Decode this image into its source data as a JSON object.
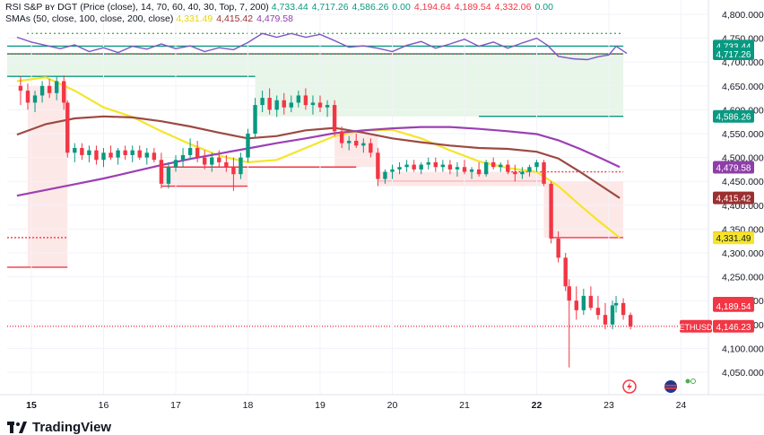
{
  "legend": {
    "indicator_line": {
      "name": "RSI S&P ʙʏ DGT",
      "params": "(Price (close), 14, 70, 60, 40, 30, Top, 7, 200)",
      "values": [
        "4,733.44",
        "4,717.26",
        "4,586.26",
        "0.00",
        "4,194.64",
        "4,189.54",
        "4,332.06",
        "0.00"
      ],
      "value_colors": [
        "#089981",
        "#089981",
        "#089981",
        "#089981",
        "#f23645",
        "#f23645",
        "#f23645",
        "#089981"
      ]
    },
    "smas_line": {
      "name": "SMAs (50, close, 100, close, 200, close)",
      "values": [
        "4,331.49",
        "4,415.42",
        "4,479.58"
      ],
      "value_colors": [
        "#e8d600",
        "#9c2f2f",
        "#8e3ea8"
      ]
    }
  },
  "footer": {
    "brand": "TradingView"
  },
  "colors": {
    "up": "#089981",
    "down": "#f23645",
    "sma50": "#f5e52a",
    "sma100": "#9c4a42",
    "sma200": "#9c3fb4",
    "rsi": "#7e57c2",
    "green_fill": "#e8f5e9",
    "red_fill": "#fde8e8"
  },
  "chart_data": {
    "type": "candlestick",
    "symbol": "ETHUSD",
    "last_price": 4146.23,
    "y_axis": {
      "min": 4050,
      "max": 4800,
      "ticks": [
        4050,
        4100,
        4150,
        4200,
        4250,
        4300,
        4350,
        4400,
        4450,
        4500,
        4550,
        4600,
        4650,
        4700,
        4750,
        4800
      ]
    },
    "x_axis": {
      "ticks": [
        "15",
        "16",
        "17",
        "18",
        "19",
        "20",
        "21",
        "22",
        "23",
        "24"
      ]
    },
    "price_labels": [
      {
        "text": "4,733.44",
        "value": 4733.44,
        "color": "#089981"
      },
      {
        "text": "4,717.26",
        "value": 4717.26,
        "color": "#089981"
      },
      {
        "text": "4,586.26",
        "value": 4586.26,
        "color": "#089981"
      },
      {
        "text": "4,479.58",
        "value": 4479.58,
        "color": "#8e3ea8"
      },
      {
        "text": "4,415.42",
        "value": 4415.42,
        "color": "#9c2f2f"
      },
      {
        "text": "4,332.06",
        "value": 4332.06,
        "color": "#f23645"
      },
      {
        "text": "4,331.49",
        "value": 4331.49,
        "color": "#f5e52a",
        "text_color": "#131722"
      },
      {
        "text": "4,194.64",
        "value": 4194.64,
        "color": "#f23645"
      },
      {
        "text": "4,189.54",
        "value": 4189.54,
        "color": "#f23645"
      },
      {
        "text": "4,146.23",
        "value": 4146.23,
        "color": "#f23645",
        "symbol_label": "ETHUSD"
      }
    ],
    "sma_series": [
      {
        "name": "SMA 50",
        "color": "#f5e52a",
        "points": [
          [
            14.8,
            4660
          ],
          [
            15.2,
            4668
          ],
          [
            15.6,
            4640
          ],
          [
            16,
            4605
          ],
          [
            16.4,
            4585
          ],
          [
            16.8,
            4555
          ],
          [
            17.2,
            4528
          ],
          [
            17.6,
            4504
          ],
          [
            18,
            4490
          ],
          [
            18.4,
            4495
          ],
          [
            18.8,
            4520
          ],
          [
            19.2,
            4545
          ],
          [
            19.6,
            4556
          ],
          [
            20,
            4558
          ],
          [
            20.4,
            4540
          ],
          [
            20.8,
            4515
          ],
          [
            21.2,
            4492
          ],
          [
            21.6,
            4478
          ],
          [
            22,
            4470
          ],
          [
            22.3,
            4440
          ],
          [
            22.6,
            4400
          ],
          [
            22.9,
            4362
          ],
          [
            23.15,
            4332
          ]
        ]
      },
      {
        "name": "SMA 100",
        "color": "#9c4a42",
        "points": [
          [
            14.8,
            4548
          ],
          [
            15.2,
            4570
          ],
          [
            15.6,
            4582
          ],
          [
            16,
            4586
          ],
          [
            16.4,
            4584
          ],
          [
            16.8,
            4576
          ],
          [
            17.2,
            4565
          ],
          [
            17.6,
            4552
          ],
          [
            18,
            4540
          ],
          [
            18.4,
            4545
          ],
          [
            18.8,
            4557
          ],
          [
            19.2,
            4562
          ],
          [
            19.6,
            4552
          ],
          [
            20,
            4540
          ],
          [
            20.4,
            4532
          ],
          [
            20.8,
            4525
          ],
          [
            21.2,
            4520
          ],
          [
            21.6,
            4518
          ],
          [
            22,
            4512
          ],
          [
            22.3,
            4498
          ],
          [
            22.6,
            4470
          ],
          [
            22.9,
            4440
          ],
          [
            23.15,
            4415
          ]
        ]
      },
      {
        "name": "SMA 200",
        "color": "#9c3fb4",
        "points": [
          [
            14.8,
            4420
          ],
          [
            15.2,
            4432
          ],
          [
            15.6,
            4444
          ],
          [
            16,
            4456
          ],
          [
            16.4,
            4470
          ],
          [
            16.8,
            4484
          ],
          [
            17.2,
            4497
          ],
          [
            17.6,
            4508
          ],
          [
            18,
            4519
          ],
          [
            18.4,
            4530
          ],
          [
            18.8,
            4540
          ],
          [
            19.2,
            4551
          ],
          [
            19.6,
            4557
          ],
          [
            20,
            4561
          ],
          [
            20.4,
            4564
          ],
          [
            20.8,
            4564
          ],
          [
            21.2,
            4560
          ],
          [
            21.6,
            4555
          ],
          [
            22,
            4549
          ],
          [
            22.3,
            4536
          ],
          [
            22.6,
            4518
          ],
          [
            22.9,
            4498
          ],
          [
            23.15,
            4480
          ]
        ]
      }
    ],
    "rsi_overlay": {
      "points": [
        [
          14.8,
          4752
        ],
        [
          15.0,
          4742
        ],
        [
          15.2,
          4735
        ],
        [
          15.4,
          4728
        ],
        [
          15.6,
          4736
        ],
        [
          15.8,
          4722
        ],
        [
          16,
          4730
        ],
        [
          16.2,
          4720
        ],
        [
          16.4,
          4733
        ],
        [
          16.6,
          4727
        ],
        [
          16.8,
          4738
        ],
        [
          17,
          4728
        ],
        [
          17.2,
          4734
        ],
        [
          17.4,
          4722
        ],
        [
          17.6,
          4730
        ],
        [
          17.8,
          4726
        ],
        [
          18,
          4741
        ],
        [
          18.2,
          4760
        ],
        [
          18.4,
          4752
        ],
        [
          18.6,
          4760
        ],
        [
          18.8,
          4752
        ],
        [
          19,
          4758
        ],
        [
          19.2,
          4745
        ],
        [
          19.4,
          4731
        ],
        [
          19.6,
          4734
        ],
        [
          19.8,
          4729
        ],
        [
          20,
          4722
        ],
        [
          20.2,
          4735
        ],
        [
          20.4,
          4743
        ],
        [
          20.6,
          4729
        ],
        [
          20.8,
          4738
        ],
        [
          21,
          4748
        ],
        [
          21.2,
          4733
        ],
        [
          21.4,
          4742
        ],
        [
          21.6,
          4729
        ],
        [
          21.8,
          4740
        ],
        [
          22,
          4750
        ],
        [
          22.15,
          4735
        ],
        [
          22.3,
          4712
        ],
        [
          22.5,
          4707
        ],
        [
          22.7,
          4705
        ],
        [
          22.85,
          4711
        ],
        [
          23,
          4715
        ],
        [
          23.1,
          4733
        ],
        [
          23.25,
          4718
        ]
      ]
    },
    "candles": [
      [
        14.85,
        4650,
        4670,
        4610,
        4640
      ],
      [
        14.95,
        4640,
        4655,
        4600,
        4615
      ],
      [
        15.05,
        4615,
        4640,
        4595,
        4630
      ],
      [
        15.15,
        4630,
        4660,
        4615,
        4650
      ],
      [
        15.25,
        4650,
        4665,
        4625,
        4635
      ],
      [
        15.35,
        4635,
        4670,
        4620,
        4660
      ],
      [
        15.45,
        4660,
        4672,
        4600,
        4615
      ],
      [
        15.5,
        4615,
        4620,
        4500,
        4510
      ],
      [
        15.6,
        4510,
        4530,
        4490,
        4520
      ],
      [
        15.7,
        4520,
        4530,
        4495,
        4505
      ],
      [
        15.8,
        4505,
        4525,
        4490,
        4515
      ],
      [
        15.9,
        4515,
        4525,
        4485,
        4495
      ],
      [
        16,
        4495,
        4520,
        4480,
        4510
      ],
      [
        16.1,
        4510,
        4525,
        4495,
        4500
      ],
      [
        16.2,
        4500,
        4520,
        4485,
        4515
      ],
      [
        16.3,
        4515,
        4525,
        4495,
        4505
      ],
      [
        16.4,
        4505,
        4525,
        4490,
        4515
      ],
      [
        16.5,
        4515,
        4525,
        4495,
        4500
      ],
      [
        16.6,
        4500,
        4520,
        4485,
        4510
      ],
      [
        16.7,
        4510,
        4520,
        4490,
        4495
      ],
      [
        16.8,
        4495,
        4510,
        4435,
        4445
      ],
      [
        16.9,
        4445,
        4490,
        4435,
        4480
      ],
      [
        17,
        4480,
        4505,
        4470,
        4495
      ],
      [
        17.1,
        4495,
        4520,
        4480,
        4505
      ],
      [
        17.2,
        4505,
        4540,
        4495,
        4520
      ],
      [
        17.3,
        4520,
        4535,
        4490,
        4500
      ],
      [
        17.4,
        4500,
        4515,
        4475,
        4485
      ],
      [
        17.5,
        4485,
        4510,
        4470,
        4500
      ],
      [
        17.6,
        4500,
        4515,
        4480,
        4490
      ],
      [
        17.7,
        4490,
        4505,
        4470,
        4480
      ],
      [
        17.8,
        4480,
        4500,
        4430,
        4465
      ],
      [
        17.9,
        4465,
        4510,
        4455,
        4500
      ],
      [
        18,
        4500,
        4560,
        4490,
        4550
      ],
      [
        18.1,
        4550,
        4625,
        4540,
        4610
      ],
      [
        18.2,
        4610,
        4640,
        4595,
        4625
      ],
      [
        18.3,
        4625,
        4645,
        4590,
        4600
      ],
      [
        18.4,
        4600,
        4630,
        4585,
        4620
      ],
      [
        18.5,
        4620,
        4635,
        4590,
        4605
      ],
      [
        18.6,
        4605,
        4630,
        4595,
        4615
      ],
      [
        18.7,
        4615,
        4640,
        4605,
        4630
      ],
      [
        18.8,
        4630,
        4645,
        4600,
        4610
      ],
      [
        18.9,
        4610,
        4630,
        4590,
        4615
      ],
      [
        19,
        4615,
        4630,
        4595,
        4605
      ],
      [
        19.1,
        4605,
        4620,
        4585,
        4610
      ],
      [
        19.2,
        4610,
        4620,
        4545,
        4555
      ],
      [
        19.3,
        4555,
        4565,
        4520,
        4530
      ],
      [
        19.4,
        4530,
        4545,
        4515,
        4535
      ],
      [
        19.5,
        4535,
        4550,
        4520,
        4525
      ],
      [
        19.6,
        4525,
        4540,
        4510,
        4530
      ],
      [
        19.7,
        4530,
        4540,
        4500,
        4510
      ],
      [
        19.8,
        4510,
        4520,
        4440,
        4455
      ],
      [
        19.9,
        4455,
        4475,
        4445,
        4470
      ],
      [
        20,
        4470,
        4485,
        4455,
        4475
      ],
      [
        20.1,
        4475,
        4490,
        4465,
        4480
      ],
      [
        20.2,
        4480,
        4495,
        4470,
        4485
      ],
      [
        20.3,
        4485,
        4495,
        4470,
        4475
      ],
      [
        20.4,
        4475,
        4490,
        4465,
        4485
      ],
      [
        20.5,
        4485,
        4500,
        4475,
        4490
      ],
      [
        20.6,
        4490,
        4500,
        4470,
        4480
      ],
      [
        20.7,
        4480,
        4495,
        4470,
        4485
      ],
      [
        20.8,
        4485,
        4495,
        4465,
        4475
      ],
      [
        20.9,
        4475,
        4490,
        4460,
        4480
      ],
      [
        21,
        4480,
        4495,
        4465,
        4470
      ],
      [
        21.1,
        4470,
        4480,
        4455,
        4475
      ],
      [
        21.2,
        4475,
        4490,
        4460,
        4465
      ],
      [
        21.3,
        4465,
        4495,
        4460,
        4490
      ],
      [
        21.4,
        4490,
        4500,
        4475,
        4480
      ],
      [
        21.5,
        4480,
        4490,
        4470,
        4485
      ],
      [
        21.6,
        4485,
        4495,
        4465,
        4470
      ],
      [
        21.7,
        4470,
        4485,
        4450,
        4465
      ],
      [
        21.8,
        4465,
        4480,
        4455,
        4470
      ],
      [
        21.9,
        4470,
        4485,
        4460,
        4480
      ],
      [
        22,
        4480,
        4495,
        4470,
        4490
      ],
      [
        22.1,
        4490,
        4495,
        4440,
        4445
      ],
      [
        22.2,
        4445,
        4450,
        4320,
        4330
      ],
      [
        22.3,
        4330,
        4345,
        4280,
        4290
      ],
      [
        22.4,
        4290,
        4300,
        4220,
        4230
      ],
      [
        22.45,
        4230,
        4245,
        4060,
        4200
      ],
      [
        22.55,
        4200,
        4230,
        4160,
        4180
      ],
      [
        22.65,
        4180,
        4225,
        4170,
        4210
      ],
      [
        22.75,
        4210,
        4230,
        4180,
        4185
      ],
      [
        22.85,
        4185,
        4210,
        4160,
        4170
      ],
      [
        22.95,
        4170,
        4195,
        4140,
        4150
      ],
      [
        23.05,
        4150,
        4200,
        4140,
        4190
      ],
      [
        23.1,
        4190,
        4210,
        4175,
        4195
      ],
      [
        23.2,
        4195,
        4205,
        4160,
        4170
      ],
      [
        23.3,
        4170,
        4175,
        4140,
        4146
      ]
    ]
  }
}
